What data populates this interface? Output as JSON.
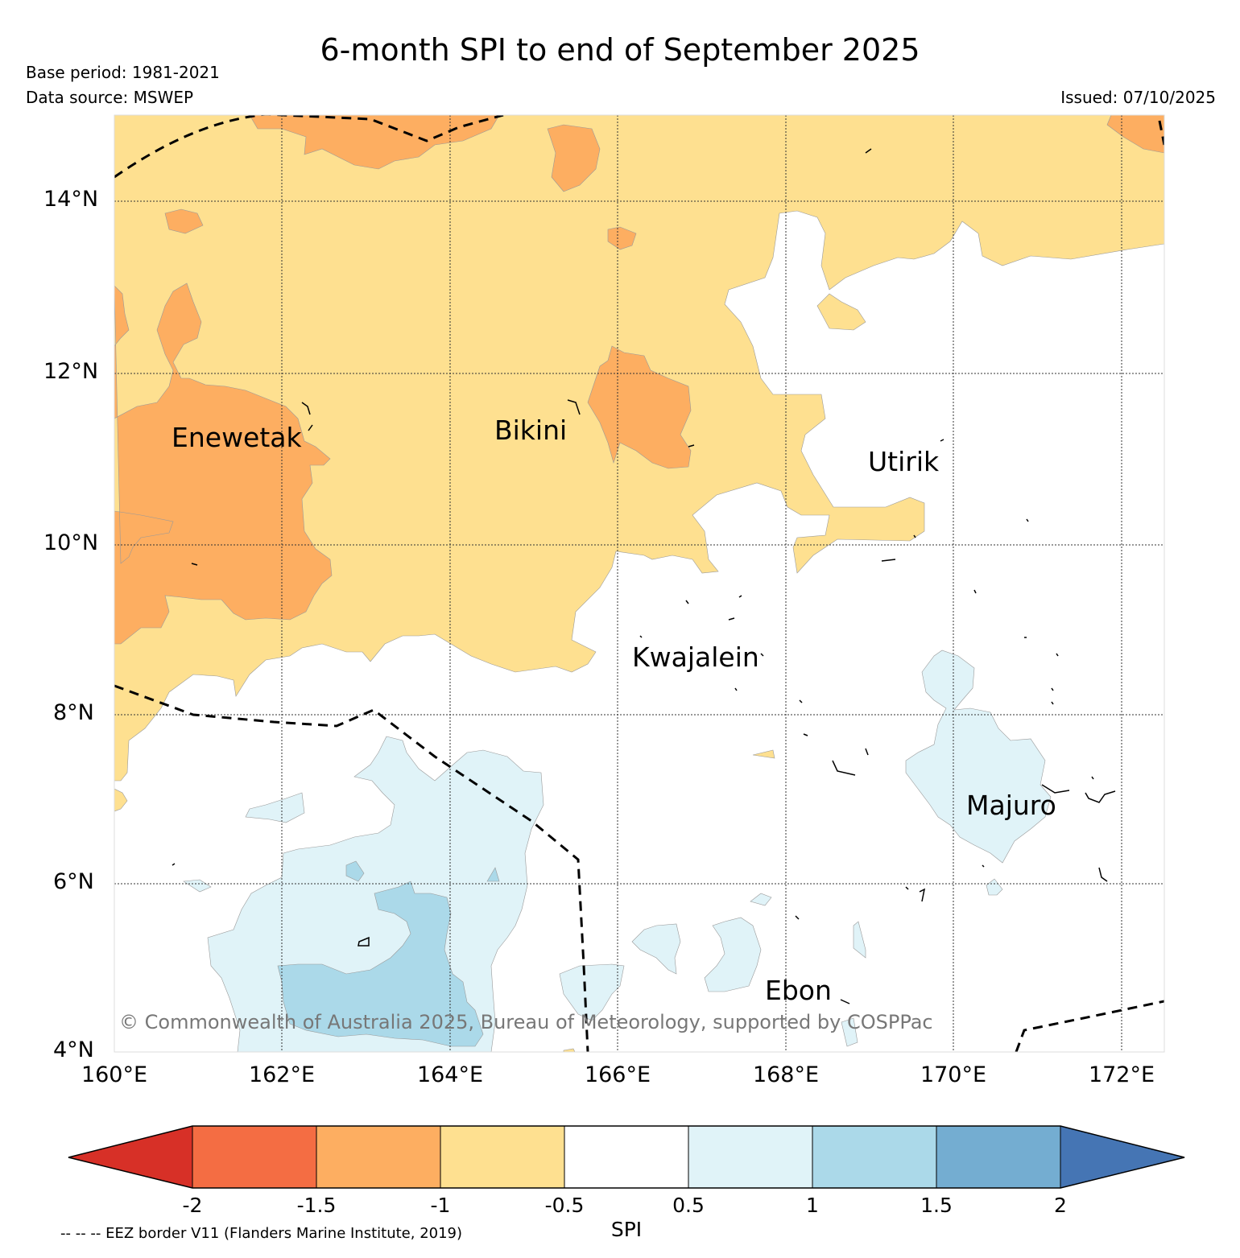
{
  "title": "6-month SPI to end of September 2025",
  "base_period": "Base period: 1981-2021",
  "data_source": "Data source: MSWEP",
  "issued": "Issued: 07/10/2025",
  "copyright": "© Commonwealth of Australia 2025, Bureau of Meteorology, supported by COSPPac",
  "latitude_labels": [
    "14°N",
    "12°N",
    "10°N",
    "8°N",
    "6°N",
    "4°N"
  ],
  "longitude_labels": [
    "160°E",
    "162°E",
    "164°E",
    "166°E",
    "168°E",
    "170°E",
    "172°E"
  ],
  "places": {
    "enewetak": "Enewetak",
    "bikini": "Bikini",
    "utirik": "Utirik",
    "kwajalein": "Kwajalein",
    "majuro": "Majuro",
    "ebon": "Ebon"
  },
  "colorbar": {
    "label": "SPI",
    "ticks": [
      "-2",
      "-1.5",
      "-1",
      "-0.5",
      "0.5",
      "1",
      "1.5",
      "2"
    ],
    "colors": {
      "below_-2": "#d73027",
      "-2_to_-1.5": "#f46d43",
      "-1.5_to_-1": "#fdae61",
      "-1_to_-0.5": "#fee090",
      "-0.5_to_0.5": "#ffffff",
      "0.5_to_1": "#e0f3f8",
      "1_to_1.5": "#abd9e9",
      "1.5_to_2": "#74add1",
      "above_2": "#4575b4"
    }
  },
  "eez_note": "-- -- -- EEZ border V11 (Flanders Marine Institute, 2019)"
}
